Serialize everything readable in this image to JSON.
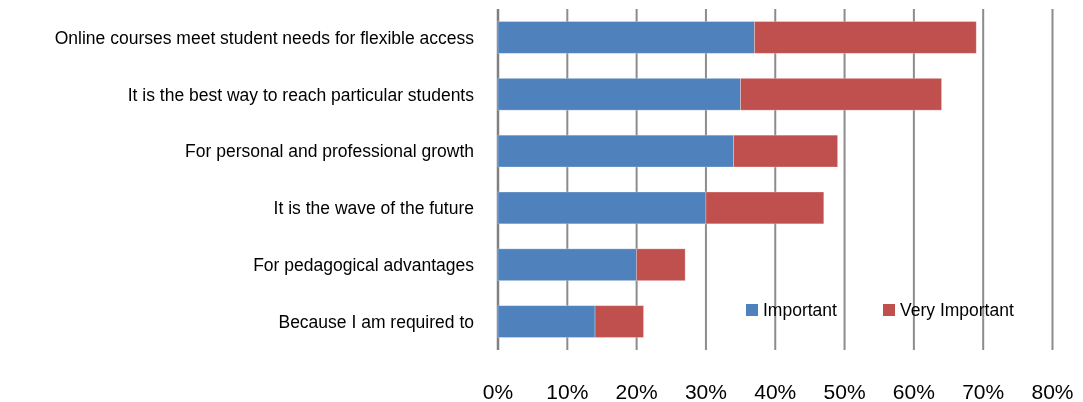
{
  "chart_data": {
    "type": "bar",
    "orientation": "horizontal",
    "stacked": true,
    "categories": [
      "Online courses meet student needs for flexible access",
      "It is the best way to reach particular students",
      "For personal and professional growth",
      "It is the wave of the future",
      "For pedagogical advantages",
      "Because I am required to"
    ],
    "series": [
      {
        "name": "Important",
        "color": "#4f81bd",
        "values": [
          37,
          35,
          34,
          30,
          20,
          14
        ]
      },
      {
        "name": "Very Important",
        "color": "#c0504d",
        "values": [
          32,
          29,
          15,
          17,
          7,
          7
        ]
      }
    ],
    "xlim": [
      0,
      80
    ],
    "xticks": [
      {
        "value": 0,
        "label": "0%"
      },
      {
        "value": 10,
        "label": "10%"
      },
      {
        "value": 20,
        "label": "20%"
      },
      {
        "value": 30,
        "label": "30%"
      },
      {
        "value": 40,
        "label": "40%"
      },
      {
        "value": 50,
        "label": "50%"
      },
      {
        "value": 60,
        "label": "60%"
      },
      {
        "value": 70,
        "label": "70%"
      },
      {
        "value": 80,
        "label": "80%"
      }
    ],
    "grid": "x",
    "legend": "bottom right"
  }
}
